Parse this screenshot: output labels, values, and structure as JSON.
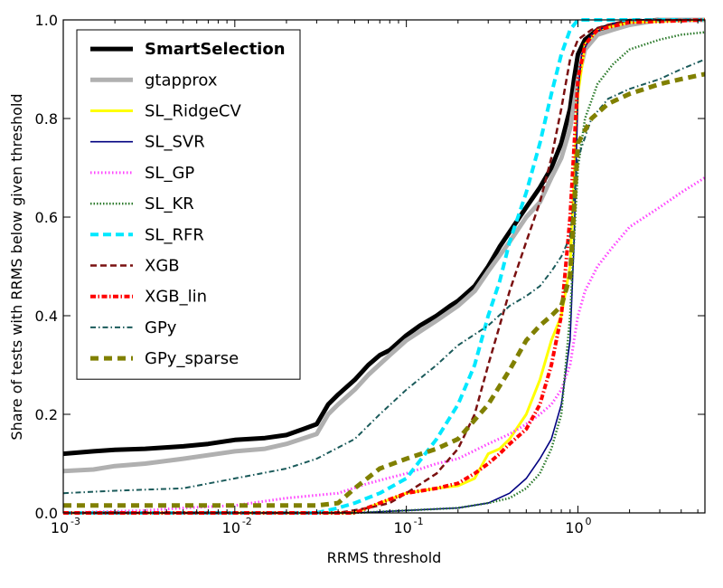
{
  "chart_data": {
    "type": "line",
    "title": "",
    "xlabel": "RRMS threshold",
    "ylabel": "Share of tests with RRMS below given threshold",
    "xscale": "log",
    "xlim": [
      0.001,
      5.5
    ],
    "ylim": [
      0.0,
      1.0
    ],
    "x_ticks": [
      {
        "value": 0.001,
        "base": "10",
        "exp": "-3"
      },
      {
        "value": 0.01,
        "base": "10",
        "exp": "-2"
      },
      {
        "value": 0.1,
        "base": "10",
        "exp": "-1"
      },
      {
        "value": 1,
        "base": "10",
        "exp": "0"
      }
    ],
    "y_ticks": [
      {
        "value": 0.0,
        "label": "0.0"
      },
      {
        "value": 0.2,
        "label": "0.2"
      },
      {
        "value": 0.4,
        "label": "0.4"
      },
      {
        "value": 0.6,
        "label": "0.6"
      },
      {
        "value": 0.8,
        "label": "0.8"
      },
      {
        "value": 1.0,
        "label": "1.0"
      }
    ],
    "legend_position": "top-left",
    "series": [
      {
        "name": "SmartSelection",
        "color": "#000000",
        "width": 5,
        "dash": "",
        "bold": true,
        "points": [
          [
            0.001,
            0.12
          ],
          [
            0.0015,
            0.125
          ],
          [
            0.002,
            0.128
          ],
          [
            0.003,
            0.13
          ],
          [
            0.005,
            0.135
          ],
          [
            0.007,
            0.14
          ],
          [
            0.01,
            0.148
          ],
          [
            0.015,
            0.152
          ],
          [
            0.02,
            0.158
          ],
          [
            0.025,
            0.17
          ],
          [
            0.03,
            0.18
          ],
          [
            0.035,
            0.22
          ],
          [
            0.04,
            0.24
          ],
          [
            0.05,
            0.27
          ],
          [
            0.06,
            0.3
          ],
          [
            0.07,
            0.32
          ],
          [
            0.08,
            0.33
          ],
          [
            0.1,
            0.36
          ],
          [
            0.12,
            0.38
          ],
          [
            0.15,
            0.4
          ],
          [
            0.18,
            0.42
          ],
          [
            0.2,
            0.43
          ],
          [
            0.25,
            0.46
          ],
          [
            0.3,
            0.5
          ],
          [
            0.35,
            0.54
          ],
          [
            0.4,
            0.57
          ],
          [
            0.5,
            0.62
          ],
          [
            0.6,
            0.66
          ],
          [
            0.7,
            0.7
          ],
          [
            0.8,
            0.75
          ],
          [
            0.9,
            0.82
          ],
          [
            0.95,
            0.88
          ],
          [
            1.0,
            0.93
          ],
          [
            1.1,
            0.96
          ],
          [
            1.3,
            0.98
          ],
          [
            1.6,
            0.99
          ],
          [
            2.0,
            0.995
          ],
          [
            3.0,
            1.0
          ],
          [
            5.5,
            1.0
          ]
        ]
      },
      {
        "name": "gtapprox",
        "color": "#b0b0b0",
        "width": 5,
        "dash": "",
        "bold": false,
        "points": [
          [
            0.001,
            0.085
          ],
          [
            0.0015,
            0.088
          ],
          [
            0.002,
            0.095
          ],
          [
            0.003,
            0.1
          ],
          [
            0.005,
            0.11
          ],
          [
            0.01,
            0.125
          ],
          [
            0.015,
            0.13
          ],
          [
            0.02,
            0.14
          ],
          [
            0.03,
            0.16
          ],
          [
            0.035,
            0.2
          ],
          [
            0.04,
            0.22
          ],
          [
            0.05,
            0.25
          ],
          [
            0.06,
            0.28
          ],
          [
            0.08,
            0.32
          ],
          [
            0.1,
            0.35
          ],
          [
            0.15,
            0.39
          ],
          [
            0.2,
            0.42
          ],
          [
            0.25,
            0.45
          ],
          [
            0.3,
            0.49
          ],
          [
            0.4,
            0.55
          ],
          [
            0.5,
            0.6
          ],
          [
            0.6,
            0.63
          ],
          [
            0.7,
            0.68
          ],
          [
            0.8,
            0.72
          ],
          [
            0.9,
            0.78
          ],
          [
            1.0,
            0.88
          ],
          [
            1.1,
            0.94
          ],
          [
            1.3,
            0.97
          ],
          [
            1.6,
            0.98
          ],
          [
            2.0,
            0.99
          ],
          [
            3.0,
            1.0
          ],
          [
            5.5,
            1.0
          ]
        ]
      },
      {
        "name": "SL_RidgeCV",
        "color": "#ffff00",
        "width": 3,
        "dash": "",
        "bold": false,
        "points": [
          [
            0.001,
            0.0
          ],
          [
            0.02,
            0.0
          ],
          [
            0.05,
            0.0
          ],
          [
            0.07,
            0.02
          ],
          [
            0.1,
            0.04
          ],
          [
            0.15,
            0.05
          ],
          [
            0.2,
            0.055
          ],
          [
            0.25,
            0.07
          ],
          [
            0.3,
            0.12
          ],
          [
            0.35,
            0.13
          ],
          [
            0.4,
            0.15
          ],
          [
            0.5,
            0.2
          ],
          [
            0.6,
            0.27
          ],
          [
            0.7,
            0.35
          ],
          [
            0.8,
            0.4
          ],
          [
            0.9,
            0.5
          ],
          [
            1.0,
            0.85
          ],
          [
            1.1,
            0.95
          ],
          [
            1.3,
            0.98
          ],
          [
            2.0,
            0.995
          ],
          [
            5.5,
            1.0
          ]
        ]
      },
      {
        "name": "SL_SVR",
        "color": "#000080",
        "width": 1.6,
        "dash": "",
        "bold": false,
        "points": [
          [
            0.001,
            0.0
          ],
          [
            0.05,
            0.0
          ],
          [
            0.1,
            0.005
          ],
          [
            0.2,
            0.01
          ],
          [
            0.3,
            0.02
          ],
          [
            0.4,
            0.04
          ],
          [
            0.5,
            0.07
          ],
          [
            0.6,
            0.11
          ],
          [
            0.7,
            0.15
          ],
          [
            0.8,
            0.22
          ],
          [
            0.9,
            0.35
          ],
          [
            0.95,
            0.55
          ],
          [
            1.0,
            0.85
          ],
          [
            1.05,
            0.93
          ],
          [
            1.2,
            0.97
          ],
          [
            1.5,
            0.99
          ],
          [
            2.0,
            1.0
          ],
          [
            5.5,
            1.0
          ]
        ]
      },
      {
        "name": "SL_GP",
        "color": "#ff44ff",
        "width": 3,
        "dash": "1.5,2.5",
        "bold": false,
        "points": [
          [
            0.001,
            0.0
          ],
          [
            0.003,
            0.005
          ],
          [
            0.005,
            0.01
          ],
          [
            0.01,
            0.015
          ],
          [
            0.02,
            0.03
          ],
          [
            0.04,
            0.04
          ],
          [
            0.06,
            0.06
          ],
          [
            0.1,
            0.08
          ],
          [
            0.15,
            0.1
          ],
          [
            0.2,
            0.11
          ],
          [
            0.3,
            0.14
          ],
          [
            0.4,
            0.16
          ],
          [
            0.5,
            0.18
          ],
          [
            0.6,
            0.2
          ],
          [
            0.7,
            0.22
          ],
          [
            0.8,
            0.25
          ],
          [
            0.9,
            0.3
          ],
          [
            1.0,
            0.4
          ],
          [
            1.1,
            0.45
          ],
          [
            1.3,
            0.5
          ],
          [
            1.6,
            0.54
          ],
          [
            2.0,
            0.58
          ],
          [
            3.0,
            0.62
          ],
          [
            4.0,
            0.65
          ],
          [
            5.5,
            0.68
          ]
        ]
      },
      {
        "name": "SL_KR",
        "color": "#2b7a2b",
        "width": 2.5,
        "dash": "1.5,2",
        "bold": false,
        "points": [
          [
            0.001,
            0.0
          ],
          [
            0.05,
            0.0
          ],
          [
            0.1,
            0.005
          ],
          [
            0.2,
            0.01
          ],
          [
            0.3,
            0.02
          ],
          [
            0.4,
            0.03
          ],
          [
            0.5,
            0.05
          ],
          [
            0.6,
            0.08
          ],
          [
            0.7,
            0.13
          ],
          [
            0.8,
            0.2
          ],
          [
            0.9,
            0.4
          ],
          [
            1.0,
            0.7
          ],
          [
            1.1,
            0.8
          ],
          [
            1.3,
            0.87
          ],
          [
            1.6,
            0.91
          ],
          [
            2.0,
            0.94
          ],
          [
            3.0,
            0.96
          ],
          [
            4.0,
            0.97
          ],
          [
            5.5,
            0.975
          ]
        ]
      },
      {
        "name": "SL_RFR",
        "color": "#00e8ff",
        "width": 4,
        "dash": "9,5",
        "bold": false,
        "points": [
          [
            0.001,
            0.0
          ],
          [
            0.03,
            0.0
          ],
          [
            0.04,
            0.01
          ],
          [
            0.05,
            0.02
          ],
          [
            0.07,
            0.04
          ],
          [
            0.1,
            0.07
          ],
          [
            0.15,
            0.15
          ],
          [
            0.2,
            0.22
          ],
          [
            0.25,
            0.3
          ],
          [
            0.3,
            0.4
          ],
          [
            0.35,
            0.47
          ],
          [
            0.4,
            0.55
          ],
          [
            0.5,
            0.65
          ],
          [
            0.6,
            0.75
          ],
          [
            0.7,
            0.85
          ],
          [
            0.8,
            0.93
          ],
          [
            0.9,
            0.98
          ],
          [
            1.0,
            1.0
          ],
          [
            5.5,
            1.0
          ]
        ]
      },
      {
        "name": "XGB",
        "color": "#7a1010",
        "width": 2.5,
        "dash": "7,4",
        "bold": false,
        "points": [
          [
            0.001,
            0.0
          ],
          [
            0.04,
            0.0
          ],
          [
            0.06,
            0.01
          ],
          [
            0.08,
            0.02
          ],
          [
            0.1,
            0.04
          ],
          [
            0.15,
            0.08
          ],
          [
            0.2,
            0.13
          ],
          [
            0.25,
            0.2
          ],
          [
            0.3,
            0.3
          ],
          [
            0.35,
            0.38
          ],
          [
            0.4,
            0.45
          ],
          [
            0.5,
            0.55
          ],
          [
            0.6,
            0.63
          ],
          [
            0.7,
            0.72
          ],
          [
            0.8,
            0.82
          ],
          [
            0.9,
            0.92
          ],
          [
            1.0,
            0.96
          ],
          [
            1.2,
            0.98
          ],
          [
            1.5,
            0.99
          ],
          [
            2.0,
            1.0
          ],
          [
            5.5,
            1.0
          ]
        ]
      },
      {
        "name": "XGB_lin",
        "color": "#ff0000",
        "width": 4,
        "dash": "6,2.5,1.5,2.5",
        "bold": false,
        "points": [
          [
            0.001,
            0.0
          ],
          [
            0.05,
            0.0
          ],
          [
            0.07,
            0.02
          ],
          [
            0.1,
            0.04
          ],
          [
            0.15,
            0.05
          ],
          [
            0.2,
            0.06
          ],
          [
            0.25,
            0.08
          ],
          [
            0.3,
            0.1
          ],
          [
            0.35,
            0.12
          ],
          [
            0.4,
            0.14
          ],
          [
            0.5,
            0.17
          ],
          [
            0.6,
            0.22
          ],
          [
            0.7,
            0.3
          ],
          [
            0.8,
            0.4
          ],
          [
            0.9,
            0.6
          ],
          [
            1.0,
            0.88
          ],
          [
            1.1,
            0.95
          ],
          [
            1.3,
            0.98
          ],
          [
            2.0,
            0.995
          ],
          [
            5.5,
            1.0
          ]
        ]
      },
      {
        "name": "GPy",
        "color": "#1a5a5a",
        "width": 2,
        "dash": "6,3,1.5,3",
        "bold": false,
        "points": [
          [
            0.001,
            0.04
          ],
          [
            0.002,
            0.045
          ],
          [
            0.005,
            0.05
          ],
          [
            0.01,
            0.07
          ],
          [
            0.02,
            0.09
          ],
          [
            0.03,
            0.11
          ],
          [
            0.05,
            0.15
          ],
          [
            0.07,
            0.2
          ],
          [
            0.1,
            0.25
          ],
          [
            0.15,
            0.3
          ],
          [
            0.2,
            0.34
          ],
          [
            0.3,
            0.38
          ],
          [
            0.4,
            0.42
          ],
          [
            0.5,
            0.44
          ],
          [
            0.6,
            0.46
          ],
          [
            0.7,
            0.49
          ],
          [
            0.8,
            0.52
          ],
          [
            0.9,
            0.56
          ],
          [
            1.0,
            0.72
          ],
          [
            1.2,
            0.8
          ],
          [
            1.5,
            0.84
          ],
          [
            2.0,
            0.86
          ],
          [
            3.0,
            0.88
          ],
          [
            4.0,
            0.9
          ],
          [
            5.5,
            0.92
          ]
        ]
      },
      {
        "name": "GPy_sparse",
        "color": "#808000",
        "width": 5,
        "dash": "9,6",
        "bold": false,
        "points": [
          [
            0.001,
            0.015
          ],
          [
            0.005,
            0.015
          ],
          [
            0.01,
            0.015
          ],
          [
            0.02,
            0.015
          ],
          [
            0.03,
            0.015
          ],
          [
            0.04,
            0.02
          ],
          [
            0.05,
            0.05
          ],
          [
            0.07,
            0.09
          ],
          [
            0.1,
            0.11
          ],
          [
            0.15,
            0.13
          ],
          [
            0.2,
            0.15
          ],
          [
            0.3,
            0.22
          ],
          [
            0.4,
            0.29
          ],
          [
            0.5,
            0.35
          ],
          [
            0.6,
            0.38
          ],
          [
            0.7,
            0.4
          ],
          [
            0.8,
            0.42
          ],
          [
            0.9,
            0.48
          ],
          [
            1.0,
            0.75
          ],
          [
            1.2,
            0.8
          ],
          [
            1.5,
            0.83
          ],
          [
            2.0,
            0.85
          ],
          [
            3.0,
            0.87
          ],
          [
            4.0,
            0.88
          ],
          [
            5.5,
            0.89
          ]
        ]
      }
    ]
  }
}
